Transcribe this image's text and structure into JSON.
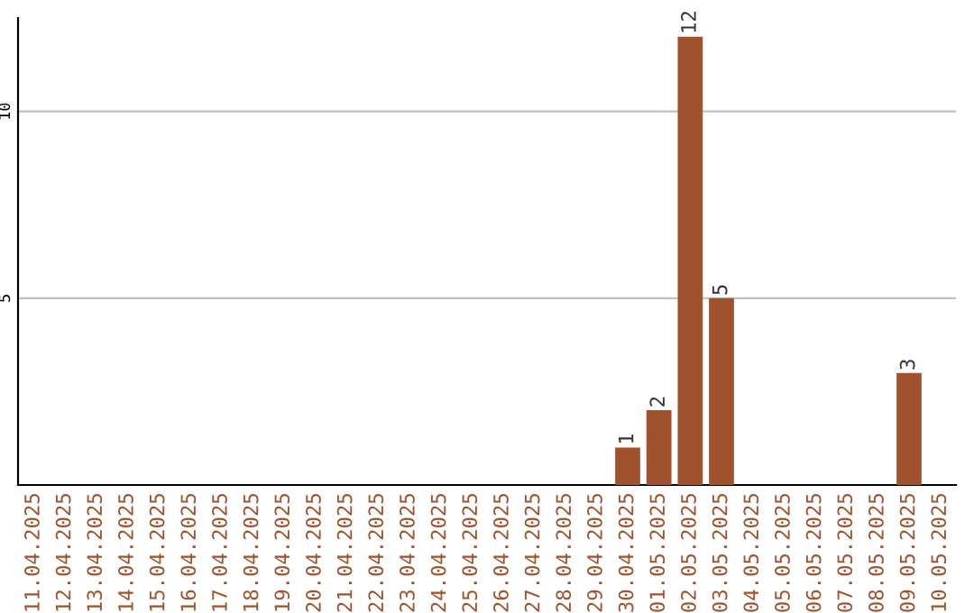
{
  "chart_data": {
    "type": "bar",
    "categories": [
      "11.04.2025",
      "12.04.2025",
      "13.04.2025",
      "14.04.2025",
      "15.04.2025",
      "16.04.2025",
      "17.04.2025",
      "18.04.2025",
      "19.04.2025",
      "20.04.2025",
      "21.04.2025",
      "22.04.2025",
      "23.04.2025",
      "24.04.2025",
      "25.04.2025",
      "26.04.2025",
      "27.04.2025",
      "28.04.2025",
      "29.04.2025",
      "30.04.2025",
      "01.05.2025",
      "02.05.2025",
      "03.05.2025",
      "04.05.2025",
      "05.05.2025",
      "06.05.2025",
      "07.05.2025",
      "08.05.2025",
      "09.05.2025",
      "10.05.2025"
    ],
    "values": [
      0,
      0,
      0,
      0,
      0,
      0,
      0,
      0,
      0,
      0,
      0,
      0,
      0,
      0,
      0,
      0,
      0,
      0,
      0,
      1,
      2,
      12,
      5,
      0,
      0,
      0,
      0,
      0,
      3,
      0
    ],
    "value_labels": [
      null,
      null,
      null,
      null,
      null,
      null,
      null,
      null,
      null,
      null,
      null,
      null,
      null,
      null,
      null,
      null,
      null,
      null,
      null,
      "1",
      "2",
      "12",
      "5",
      null,
      null,
      null,
      null,
      null,
      "3",
      null
    ],
    "color": "#a0522d",
    "ylim": [
      0,
      12.5
    ],
    "yticks": [
      5,
      10
    ],
    "grid": "y"
  }
}
